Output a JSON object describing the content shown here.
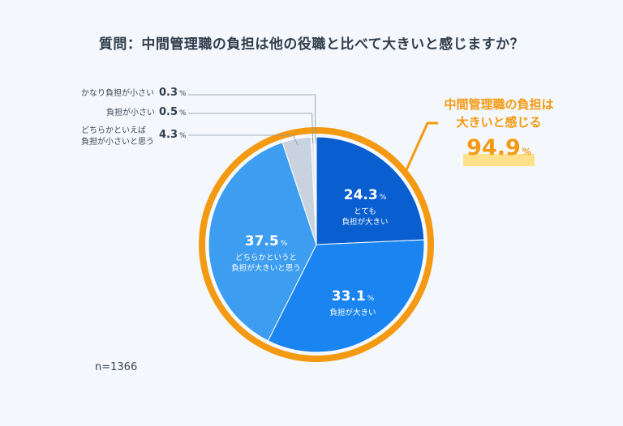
{
  "question": "質問：中間管理職の負担は他の役職と比べて大きいと感じますか？",
  "sample_size": "n=1366",
  "percent_sign": "%",
  "callout": {
    "line1": "中間管理職の負担は",
    "line2": "大きいと感じる",
    "value": "94.9"
  },
  "colors": {
    "ring": "#f39a12",
    "very_heavy": "#0a5fd0",
    "heavy": "#1a84f0",
    "somewhat_heavy": "#3d9df0",
    "somewhat_light": "#c8d3df",
    "light": "#e3e8ee",
    "quite_light": "#eef1f5",
    "leader": "#8a96a3"
  },
  "chart_data": {
    "type": "pie",
    "title": "質問：中間管理職の負担は他の役職と比べて大きいと感じますか？",
    "slices": [
      {
        "label": "とても 負担が大きい",
        "value": 24.3,
        "display": "24.3"
      },
      {
        "label": "負担が大きい",
        "value": 33.1,
        "display": "33.1"
      },
      {
        "label": "どちらかというと 負担が大きいと思う",
        "value": 37.5,
        "display": "37.5"
      },
      {
        "label": "どちらかといえば 負担が小さいと思う",
        "value": 4.3,
        "display": "4.3"
      },
      {
        "label": "負担が小さい",
        "value": 0.5,
        "display": "0.5"
      },
      {
        "label": "かなり負担が小さい",
        "value": 0.3,
        "display": "0.3"
      }
    ],
    "inner_labels": {
      "very_heavy": "とても\n負担が大きい",
      "heavy": "負担が大きい",
      "somewhat_heavy": "どちらかというと\n負担が大きいと思う"
    },
    "outer_labels": {
      "somewhat_light": "どちらかといえば\n負担が小さいと思う",
      "light": "負担が小さい",
      "quite_light": "かなり負担が小さい"
    }
  }
}
